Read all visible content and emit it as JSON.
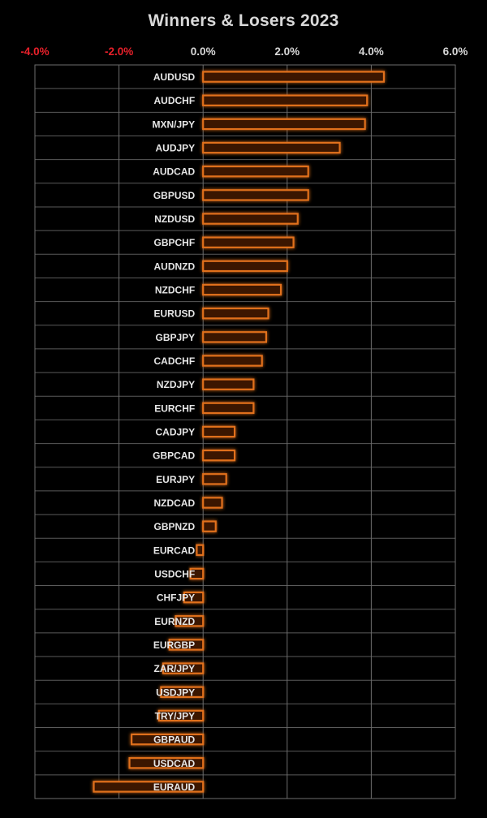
{
  "chart_data": {
    "type": "bar",
    "orientation": "horizontal",
    "title": "Winners & Losers 2023",
    "xlabel": "",
    "ylabel": "",
    "xlim": [
      -4.0,
      6.0
    ],
    "x_ticks": [
      "-4.0%",
      "-2.0%",
      "0.0%",
      "2.0%",
      "4.0%",
      "6.0%"
    ],
    "x_tick_values": [
      -4.0,
      -2.0,
      0.0,
      2.0,
      4.0,
      6.0
    ],
    "negative_tick_color": "#e8202a",
    "positive_tick_color": "#d9d9d9",
    "grid": true,
    "legend": "none",
    "bar_color": "#e0701a",
    "categories": [
      "AUDUSD",
      "AUDCHF",
      "MXN/JPY",
      "AUDJPY",
      "AUDCAD",
      "GBPUSD",
      "NZDUSD",
      "GBPCHF",
      "AUDNZD",
      "NZDCHF",
      "EURUSD",
      "GBPJPY",
      "CADCHF",
      "NZDJPY",
      "EURCHF",
      "CADJPY",
      "GBPCAD",
      "EURJPY",
      "NZDCAD",
      "GBPNZD",
      "EURCAD",
      "USDCHF",
      "CHFJPY",
      "EURNZD",
      "EURGBP",
      "ZAR/JPY",
      "USDJPY",
      "TRY/JPY",
      "GBPAUD",
      "USDCAD",
      "EURAUD"
    ],
    "values": [
      4.3,
      3.9,
      3.85,
      3.25,
      2.5,
      2.5,
      2.25,
      2.15,
      2.0,
      1.85,
      1.55,
      1.5,
      1.4,
      1.2,
      1.2,
      0.75,
      0.75,
      0.55,
      0.45,
      0.3,
      -0.15,
      -0.3,
      -0.45,
      -0.65,
      -0.8,
      -0.95,
      -1.0,
      -1.05,
      -1.7,
      -1.75,
      -2.6
    ]
  }
}
